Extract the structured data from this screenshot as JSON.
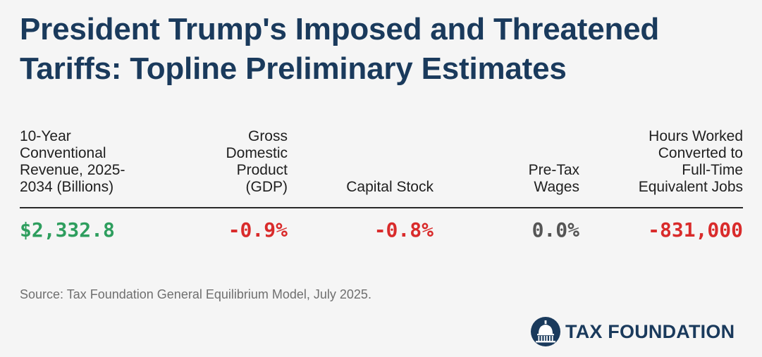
{
  "title": "President Trump's Imposed and Threatened Tariffs: Topline Preliminary Estimates",
  "chart_data": {
    "type": "table",
    "columns": [
      {
        "header_lines": [
          "10-Year",
          "Conventional",
          "Revenue, 2025-",
          "2034 (Billions)"
        ],
        "value": "$2,332.8",
        "color": "#2e9e5e"
      },
      {
        "header_lines": [
          "Gross",
          "Domestic",
          "Product",
          "(GDP)"
        ],
        "value": "-0.9%",
        "color": "#d92b2b"
      },
      {
        "header_lines": [
          "Capital Stock"
        ],
        "value": "-0.8%",
        "color": "#d92b2b"
      },
      {
        "header_lines": [
          "Pre-Tax",
          "Wages"
        ],
        "value": "0.0%",
        "color": "#555555"
      },
      {
        "header_lines": [
          "Hours Worked",
          "Converted to",
          "Full-Time",
          "Equivalent Jobs"
        ],
        "value": "-831,000",
        "color": "#d92b2b"
      }
    ]
  },
  "source": "Source: Tax Foundation General Equilibrium Model, July 2025.",
  "logo": {
    "text": "TAX FOUNDATION",
    "icon": "capitol-dome-icon",
    "color": "#1a3a5c"
  }
}
